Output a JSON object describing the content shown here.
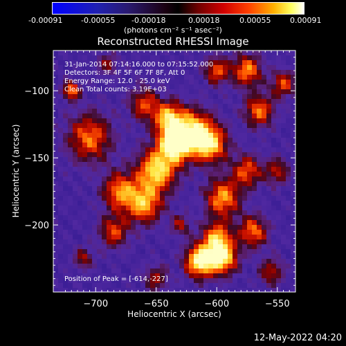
{
  "colorbar": {
    "ticks": [
      "-0.00091",
      "-0.00055",
      "-0.00018",
      "0.00018",
      "0.00055",
      "0.00091"
    ],
    "units_label": "(photons cm⁻² s⁻¹ asec⁻²)"
  },
  "plot": {
    "title": "Reconstructed RHESSI Image",
    "info_lines": [
      "31-Jan-2014 07:14:16.000 to 07:15:52.000",
      "Detectors: 3F 4F 5F 6F 7F 8F, Att 0",
      "Energy Range: 12.0 - 25.0 keV",
      "Clean     Total counts: 3.19E+03"
    ],
    "peak_label": "Position of Peak = [-614,-227]"
  },
  "chart_data": {
    "type": "heatmap",
    "title": "Reconstructed RHESSI Image",
    "xlabel": "Heliocentric X (arcsec)",
    "ylabel": "Heliocentric Y (arcsec)",
    "xlim": [
      -735,
      -535
    ],
    "ylim": [
      -250,
      -70
    ],
    "xticks": [
      -700,
      -650,
      -600,
      -550
    ],
    "yticks": [
      -100,
      -150,
      -200
    ],
    "xtick_labels": [
      "−700",
      "−650",
      "−600",
      "−550"
    ],
    "ytick_labels": [
      "−100",
      "−150",
      "−200"
    ],
    "colorbar_range": [
      -0.00091,
      0.00091
    ],
    "peak_position": [
      -614,
      -227
    ],
    "colormap": "blue-purple-black-red-yellow-white"
  },
  "footer": {
    "timestamp": "12-May-2022 04:20"
  }
}
